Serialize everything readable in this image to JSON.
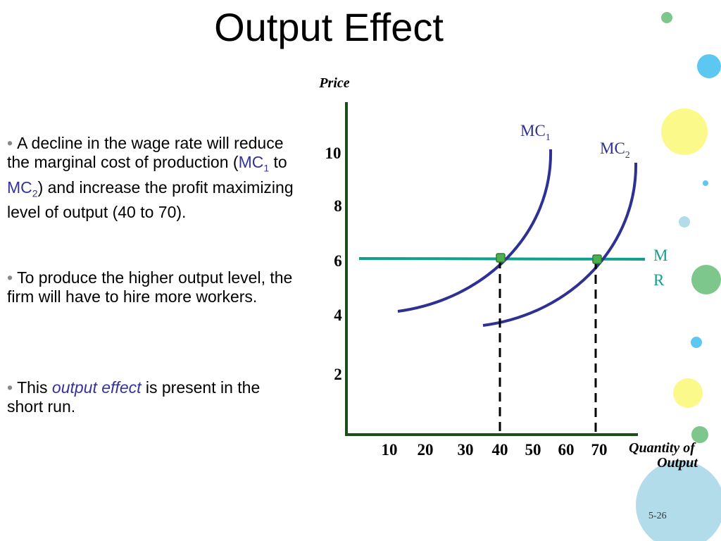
{
  "slide": {
    "title": "Output Effect",
    "slide_number": "5-26"
  },
  "bullets": {
    "b1": {
      "marker": "•",
      "part1": "A decline in the wage rate will reduce the marginal cost of production (",
      "mc1": "MC",
      "mc1_sub": "1",
      "to": " to ",
      "mc2": "MC",
      "mc2_sub": "2",
      "part2": ") and increase the profit maximizing level of output (40 to 70)."
    },
    "b2": {
      "marker": "•",
      "text": "To produce the higher output level, the firm will have to hire more workers."
    },
    "b3": {
      "marker": "•",
      "part1": "This ",
      "emph": "output effect",
      "part2": " is present in the short run."
    }
  },
  "chart_data": {
    "type": "line",
    "ylabel": "Price",
    "xlabel_line1": "Quantity of",
    "xlabel_line2": "Output",
    "y_ticks": [
      "10",
      "8",
      "6",
      "4",
      "2"
    ],
    "x_ticks": [
      "10",
      "20",
      "30",
      "40",
      "50",
      "60",
      "70"
    ],
    "series": [
      {
        "name": "MC",
        "sub": "1"
      },
      {
        "name": "MC",
        "sub": "2"
      },
      {
        "name": "M R",
        "line1": "M",
        "line2": "R",
        "y": 6
      }
    ],
    "equilibria": [
      {
        "x": 40,
        "y": 6
      },
      {
        "x": 70,
        "y": 6
      }
    ]
  },
  "colors": {
    "axis": "#1a4d1a",
    "mc_curves": "#2e3192",
    "mr_line": "#12a08e",
    "highlight_text": "#33339a",
    "equilibrium_point": "#4caf50"
  },
  "decorations": {
    "circle_colors": [
      "#7dc68c",
      "#5cc8f2",
      "#fbf98a",
      "#5cc8f2",
      "#b3dcea",
      "#7dc68c",
      "#5cc8f2",
      "#fbf98a",
      "#7dc68c",
      "#b3dcea"
    ]
  }
}
